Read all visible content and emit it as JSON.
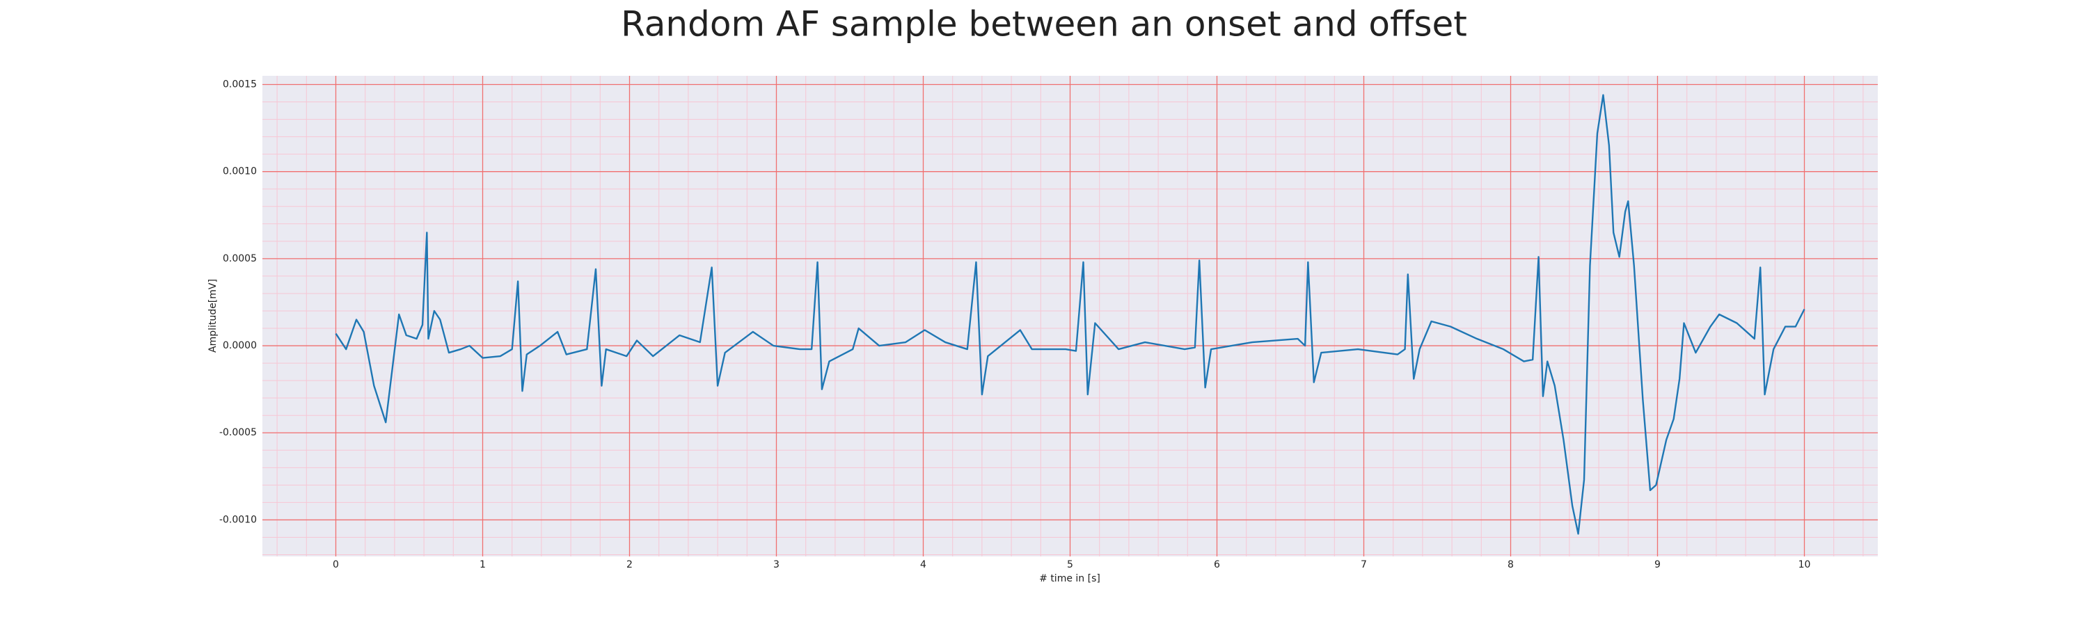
{
  "chart_data": {
    "type": "line",
    "title": "Random AF sample between an onset and offset",
    "x_label": "# time in [s]",
    "y_label": "Amplitude[mV]",
    "color": "#1f77b4",
    "grid": true,
    "minor_grid": true,
    "xlim": [
      -0.5,
      10.5
    ],
    "ylim": [
      -0.00121,
      0.00155
    ],
    "xticks": [
      0,
      1,
      2,
      3,
      4,
      5,
      6,
      7,
      8,
      9,
      10
    ],
    "yticks": [
      {
        "value": -0.001,
        "label": "-0.0010"
      },
      -0.0005,
      {
        "value": 0,
        "label": "0.0000"
      },
      0.0005,
      {
        "value": 0.001,
        "label": "0.0010"
      },
      0.0015
    ],
    "x": [
      0,
      0.07,
      0.14,
      0.19,
      0.26,
      0.34,
      0.43,
      0.48,
      0.55,
      0.59,
      0.62,
      0.63,
      0.67,
      0.71,
      0.77,
      0.85,
      0.91,
      1.0,
      1.12,
      1.2,
      1.24,
      1.27,
      1.3,
      1.39,
      1.51,
      1.57,
      1.71,
      1.77,
      1.81,
      1.84,
      1.98,
      2.05,
      2.16,
      2.34,
      2.48,
      2.56,
      2.6,
      2.65,
      2.84,
      2.98,
      3.16,
      3.24,
      3.28,
      3.31,
      3.36,
      3.52,
      3.56,
      3.7,
      3.88,
      4.01,
      4.15,
      4.3,
      4.36,
      4.4,
      4.44,
      4.66,
      4.74,
      4.97,
      5.04,
      5.09,
      5.12,
      5.17,
      5.33,
      5.51,
      5.78,
      5.85,
      5.88,
      5.92,
      5.96,
      6.24,
      6.55,
      6.6,
      6.62,
      6.66,
      6.71,
      6.96,
      7.23,
      7.28,
      7.3,
      7.34,
      7.38,
      7.46,
      7.59,
      7.77,
      7.95,
      8.09,
      8.15,
      8.19,
      8.22,
      8.25,
      8.3,
      8.36,
      8.42,
      8.46,
      8.5,
      8.54,
      8.59,
      8.63,
      8.67,
      8.7,
      8.74,
      8.78,
      8.8,
      8.84,
      8.9,
      8.95,
      8.99,
      9.06,
      9.11,
      9.15,
      9.18,
      9.26,
      9.36,
      9.42,
      9.54,
      9.66,
      9.7,
      9.73,
      9.79,
      9.87,
      9.94,
      10.0
    ],
    "values": [
      7e-05,
      -2e-05,
      0.00015,
      8e-05,
      -0.00023,
      -0.00044,
      0.00018,
      6e-05,
      4e-05,
      0.00012,
      0.00065,
      4e-05,
      0.0002,
      0.00015,
      -4e-05,
      -2e-05,
      0,
      -7e-05,
      -6e-05,
      -2e-05,
      0.00037,
      -0.00026,
      -5e-05,
      0,
      8e-05,
      -5e-05,
      -2e-05,
      0.00044,
      -0.00023,
      -2e-05,
      -6e-05,
      3e-05,
      -6e-05,
      6e-05,
      2e-05,
      0.00045,
      -0.00023,
      -4e-05,
      8e-05,
      0,
      -2e-05,
      -2e-05,
      0.00048,
      -0.00025,
      -9e-05,
      -2e-05,
      0.0001,
      0,
      2e-05,
      9e-05,
      2e-05,
      -2e-05,
      0.00048,
      -0.00028,
      -6e-05,
      9e-05,
      -2e-05,
      -2e-05,
      -3e-05,
      0.00048,
      -0.00028,
      0.00013,
      -2e-05,
      2e-05,
      -2e-05,
      -1e-05,
      0.00049,
      -0.00024,
      -2e-05,
      2e-05,
      4e-05,
      0,
      0.00048,
      -0.00021,
      -4e-05,
      -2e-05,
      -5e-05,
      -2e-05,
      0.00041,
      -0.00019,
      -2e-05,
      0.00014,
      0.00011,
      4e-05,
      -2e-05,
      -9e-05,
      -8e-05,
      0.00051,
      -0.00029,
      -9e-05,
      -0.00023,
      -0.00054,
      -0.00092,
      -0.00108,
      -0.00077,
      0.00046,
      0.00122,
      0.00144,
      0.00115,
      0.00065,
      0.00051,
      0.00077,
      0.00083,
      0.00046,
      -0.00031,
      -0.00083,
      -0.0008,
      -0.00054,
      -0.00042,
      -0.00019,
      0.00013,
      -4e-05,
      0.00011,
      0.00018,
      0.00013,
      4e-05,
      0.00045,
      -0.00028,
      -2e-05,
      0.00011,
      0.00011,
      0.00021
    ]
  }
}
